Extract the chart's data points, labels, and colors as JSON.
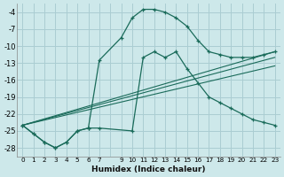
{
  "xlabel": "Humidex (Indice chaleur)",
  "bg_color": "#cde8ea",
  "grid_color": "#aacdd2",
  "line_color": "#1a6b5a",
  "xlim": [
    -0.5,
    23.5
  ],
  "ylim": [
    -29.5,
    -2.5
  ],
  "yticks": [
    -4,
    -7,
    -10,
    -13,
    -16,
    -19,
    -22,
    -25,
    -28
  ],
  "xtick_labels": [
    "0",
    "1",
    "2",
    "3",
    "4",
    "5",
    "6",
    "7",
    "",
    "9",
    "10",
    "11",
    "12",
    "13",
    "14",
    "15",
    "16",
    "17",
    "18",
    "19",
    "20",
    "21",
    "22",
    "23"
  ],
  "curve_peak_x": [
    0,
    1,
    2,
    3,
    4,
    5,
    6,
    7,
    9,
    10,
    11,
    12,
    13,
    14,
    15,
    16,
    17,
    18,
    19,
    20,
    21,
    22,
    23
  ],
  "curve_peak_y": [
    -24,
    -25.5,
    -27,
    -28,
    -27,
    -25,
    -24.5,
    -12.5,
    -8.5,
    -5,
    -3.5,
    -3.5,
    -4,
    -5,
    -6.5,
    -9,
    -11,
    -11.5,
    -12,
    -12,
    -12,
    -11.5,
    -11
  ],
  "curve_low_x": [
    0,
    1,
    2,
    3,
    4,
    5,
    6,
    7,
    10,
    11,
    12,
    13,
    14,
    15,
    16,
    17,
    18,
    19,
    20,
    21,
    22,
    23
  ],
  "curve_low_y": [
    -24,
    -25.5,
    -27,
    -28,
    -27,
    -25,
    -24.5,
    -24.5,
    -25,
    -12,
    -11,
    -12,
    -11,
    -14,
    -16.5,
    -19,
    -20,
    -21,
    -22,
    -23,
    -23.5,
    -24
  ],
  "line1_x": [
    0,
    23
  ],
  "line1_y": [
    -24,
    -11
  ],
  "line2_x": [
    0,
    23
  ],
  "line2_y": [
    -24,
    -12
  ],
  "line3_x": [
    0,
    23
  ],
  "line3_y": [
    -24,
    -13.5
  ]
}
